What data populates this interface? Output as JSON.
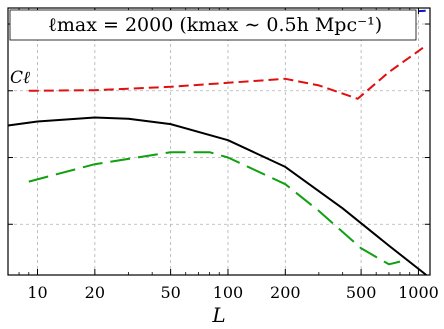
{
  "chart_data": {
    "type": "line",
    "title": "ℓmax = 2000 (kmax ∼ 0.5h Mpc⁻¹)",
    "xlabel": "L",
    "ylabel": "",
    "xscale": "log",
    "xlim": [
      7,
      1150
    ],
    "ylim": [
      0,
      1
    ],
    "x_ticks": [
      10,
      20,
      50,
      100,
      200,
      500,
      1000
    ],
    "x_tick_labels": [
      "10",
      "20",
      "50",
      "100",
      "200",
      "500",
      "1000"
    ],
    "grid": true,
    "legend": "none",
    "series": [
      {
        "color": "#1010d0",
        "style": "short-dash",
        "x": [
          9,
          20,
          50,
          100,
          200,
          400,
          700,
          1100
        ],
        "y": [
          0.965,
          0.966,
          0.967,
          0.968,
          0.97,
          0.974,
          0.982,
          0.99
        ]
      },
      {
        "name": "Cℓ",
        "color": "#e01010",
        "style": "dash",
        "x": [
          9,
          20,
          50,
          100,
          200,
          300,
          480,
          700,
          1100
        ],
        "y": [
          0.69,
          0.692,
          0.705,
          0.72,
          0.735,
          0.71,
          0.66,
          0.76,
          0.86
        ]
      },
      {
        "color": "#000000",
        "style": "solid",
        "x": [
          7,
          10,
          20,
          30,
          50,
          100,
          200,
          400,
          700,
          1100
        ],
        "y": [
          0.56,
          0.575,
          0.59,
          0.585,
          0.565,
          0.505,
          0.405,
          0.25,
          0.11,
          0.0
        ]
      },
      {
        "color": "#10a010",
        "style": "long-dash",
        "x": [
          9,
          20,
          50,
          80,
          100,
          200,
          300,
          500,
          700,
          800
        ],
        "y": [
          0.35,
          0.415,
          0.46,
          0.46,
          0.44,
          0.34,
          0.24,
          0.1,
          0.04,
          0.05
        ]
      }
    ]
  }
}
